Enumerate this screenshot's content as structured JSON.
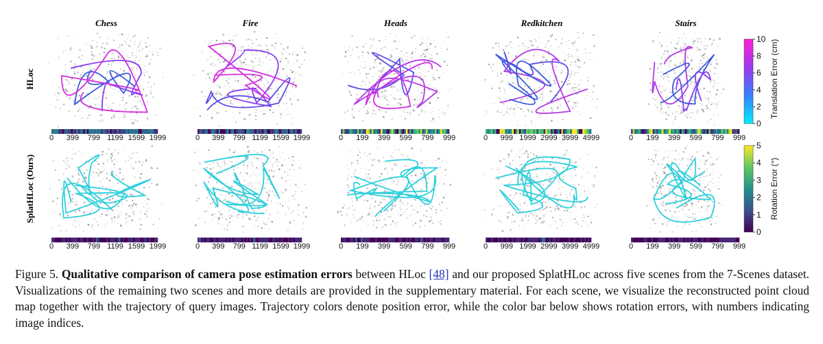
{
  "figure": {
    "scenes": [
      {
        "name": "Chess",
        "indices": [
          0,
          399,
          799,
          1199,
          1599,
          1999
        ]
      },
      {
        "name": "Fire",
        "indices": [
          0,
          399,
          799,
          1199,
          1599,
          1999
        ]
      },
      {
        "name": "Heads",
        "indices": [
          0,
          199,
          399,
          599,
          799,
          999
        ]
      },
      {
        "name": "Redkitchen",
        "indices": [
          0,
          999,
          1999,
          2999,
          3999,
          4999
        ]
      },
      {
        "name": "Stairs",
        "indices": [
          0,
          199,
          399,
          599,
          799,
          999
        ]
      }
    ],
    "rows": [
      "HLoc",
      "SplatHLoc (Ours)"
    ],
    "translation_colorbar": {
      "label": "Translation Error (cm)",
      "ticks": [
        0,
        2,
        4,
        6,
        8,
        10
      ]
    },
    "rotation_colorbar": {
      "label": "Rotation Error (°)",
      "ticks": [
        0,
        1,
        2,
        3,
        4,
        5
      ]
    }
  },
  "caption": {
    "number": "Figure 5.",
    "bold": "Qualitative comparison of camera pose estimation errors",
    "text1": "between HLoc",
    "citation": "[48]",
    "text2": "and our proposed SplatHLoc across five scenes from the 7-Scenes dataset. Visualizations of the remaining two scenes and more details are provided in the supplementary material. For each scene, we visualize the reconstructed point cloud map together with the trajectory of query images. Trajectory colors denote position error, while the color bar below shows rotation errors, with numbers indicating image indices."
  }
}
